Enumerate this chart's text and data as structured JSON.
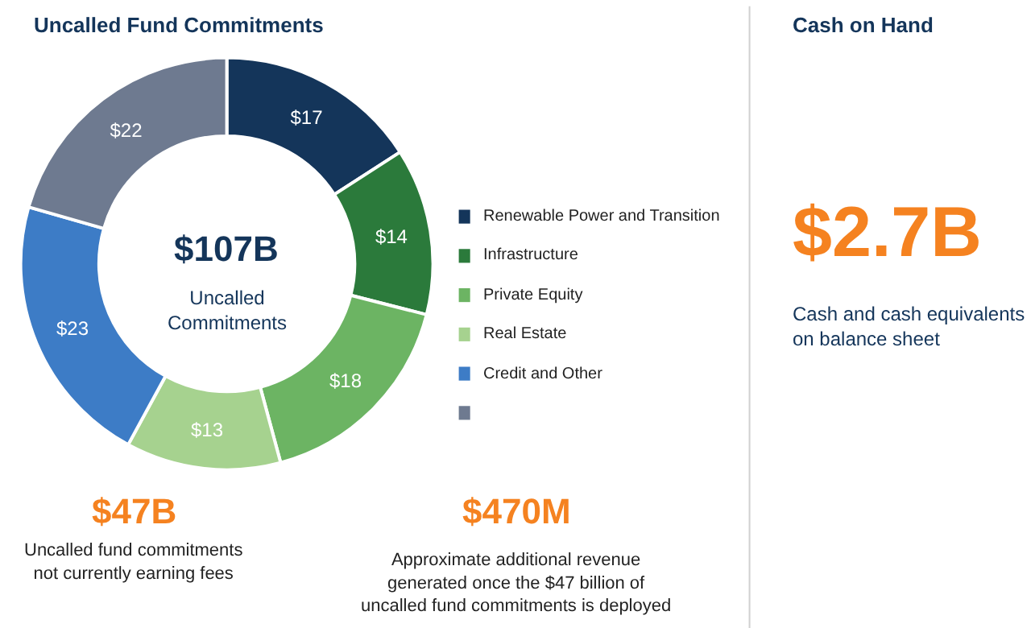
{
  "chart_data": [
    {
      "type": "donut",
      "title": "Uncalled Fund Commitments",
      "categories": [
        "Renewable Power and Transition",
        "Infrastructure",
        "Private Equity",
        "Real Estate",
        "Credit and Other",
        null
      ],
      "values": [
        17,
        14,
        18,
        13,
        23,
        22
      ],
      "colors": [
        "#14355a",
        "#2b7a3b",
        "#6cb463",
        "#a6d28f",
        "#3d7cc6",
        "#6e7a90"
      ],
      "value_labels": [
        "$17",
        "$14",
        "$18",
        "$13",
        "$23",
        "$22"
      ],
      "legend": "right",
      "annotations": [
        "$107B",
        "Uncalled\nCommitments",
        "$47B",
        "Uncalled fund commitments\nnot currently earning fees",
        "$470M",
        "Approximate additional revenue\ngenerated once the $47 billion of\nuncalled fund commitments is deployed"
      ]
    },
    {
      "type": "other",
      "title": "Cash on Hand",
      "annotations": [
        "$2.7B",
        "Cash and cash equivalents\non balance sheet"
      ]
    }
  ]
}
